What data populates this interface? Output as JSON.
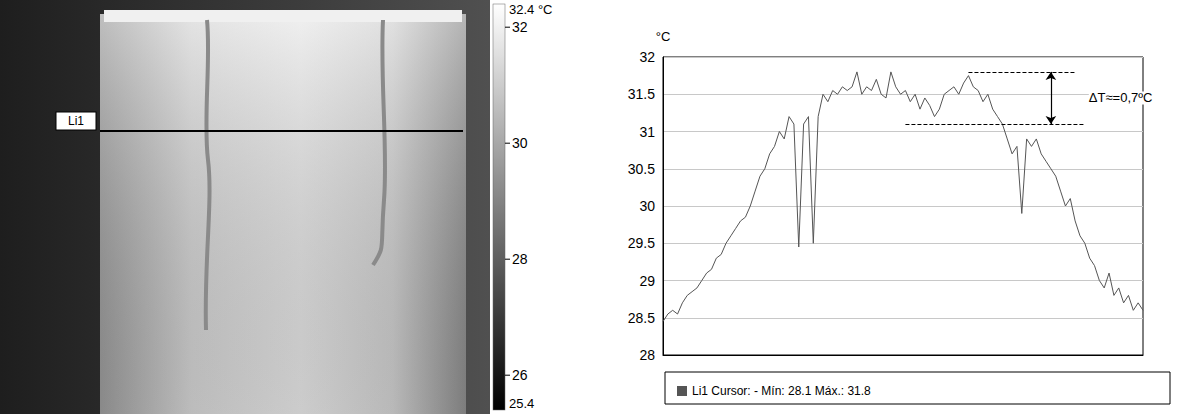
{
  "image": {
    "line_label": "Li1",
    "colorbar": {
      "min": 25.4,
      "max": 32.4,
      "ticks": [
        26,
        28,
        30,
        32
      ],
      "max_label": "32.4 °C",
      "min_label": "25.4"
    }
  },
  "chart_data": {
    "type": "line",
    "y_label": "°C",
    "x": [
      0,
      1,
      2,
      3,
      4,
      5,
      6,
      7,
      8,
      9,
      10,
      11,
      12,
      13,
      14,
      15,
      16,
      17,
      18,
      19,
      20,
      21,
      22,
      23,
      24,
      25,
      26,
      27,
      28,
      29,
      30,
      31,
      32,
      33,
      34,
      35,
      36,
      37,
      38,
      39,
      40,
      41,
      42,
      43,
      44,
      45,
      46,
      47,
      48,
      49,
      50,
      51,
      52,
      53,
      54,
      55,
      56,
      57,
      58,
      59,
      60,
      61,
      62,
      63,
      64,
      65,
      66,
      67,
      68,
      69,
      70,
      71,
      72,
      73,
      74,
      75,
      76,
      77,
      78,
      79,
      80,
      81,
      82,
      83,
      84,
      85,
      86,
      87,
      88,
      89,
      90,
      91,
      92,
      93,
      94,
      95,
      96,
      97,
      98,
      99
    ],
    "series": [
      {
        "name": "Li1 Cursor: - Mín: 28.1 Máx.: 31.8",
        "color": "#555555",
        "values": [
          28.45,
          28.55,
          28.6,
          28.55,
          28.7,
          28.8,
          28.85,
          28.9,
          29.0,
          29.1,
          29.15,
          29.3,
          29.35,
          29.5,
          29.6,
          29.7,
          29.8,
          29.85,
          30.0,
          30.2,
          30.4,
          30.5,
          30.7,
          30.8,
          31.0,
          30.9,
          31.2,
          31.1,
          29.45,
          31.1,
          31.2,
          29.5,
          31.2,
          31.5,
          31.4,
          31.55,
          31.5,
          31.6,
          31.55,
          31.6,
          31.8,
          31.5,
          31.6,
          31.55,
          31.7,
          31.5,
          31.45,
          31.8,
          31.6,
          31.5,
          31.55,
          31.4,
          31.5,
          31.3,
          31.45,
          31.35,
          31.2,
          31.3,
          31.5,
          31.55,
          31.6,
          31.5,
          31.65,
          31.75,
          31.6,
          31.55,
          31.4,
          31.5,
          31.3,
          31.2,
          31.1,
          30.9,
          30.7,
          30.8,
          29.9,
          30.9,
          30.8,
          30.9,
          30.7,
          30.6,
          30.5,
          30.4,
          30.2,
          30.0,
          30.1,
          29.8,
          29.6,
          29.5,
          29.3,
          29.2,
          29.0,
          28.9,
          29.1,
          28.8,
          28.9,
          28.7,
          28.8,
          28.6,
          28.7,
          28.6
        ]
      }
    ],
    "xlim": [
      0,
      99
    ],
    "ylim": [
      28,
      32
    ],
    "yticks": [
      28,
      28.5,
      29,
      29.5,
      30,
      30.5,
      31,
      31.5,
      32
    ],
    "grid": true,
    "legend": "bottom",
    "tick_labels": "y",
    "annotation": {
      "text": "ΔT≈=0,7ºC",
      "y_top": 31.8,
      "y_bottom": 31.1,
      "x_top": [
        63,
        85
      ],
      "x_bottom": [
        50,
        87
      ],
      "x_arrow": 80
    }
  }
}
